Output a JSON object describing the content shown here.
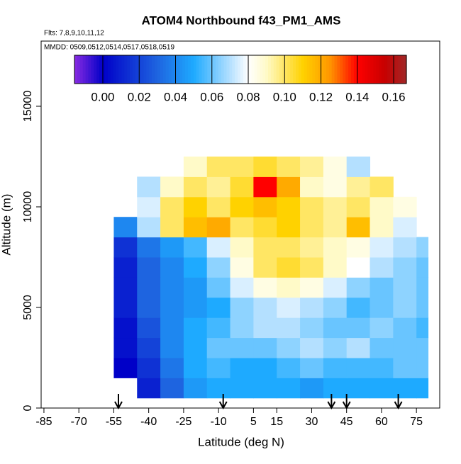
{
  "chart_data": {
    "type": "heatmap",
    "title": "ATOM4 Northbound f43_PM1_AMS",
    "annotations": [
      "Flts: 7,8,9,10,11,12",
      "MMDD: 0509,0512,0514,0517,0518,0519"
    ],
    "x_label": "Latitude (deg N)",
    "y_label": "Altitude (m)",
    "xlim": [
      -86.2,
      85
    ],
    "ylim": [
      0,
      18240
    ],
    "xticks": [
      -85,
      -70,
      -55,
      -40,
      -25,
      -10,
      5,
      15,
      30,
      45,
      60,
      75
    ],
    "yticks": [
      0,
      5000,
      10000,
      15000
    ],
    "x_edges": [
      -55,
      -45,
      -35,
      -25,
      -15,
      -5,
      5,
      15,
      25,
      35,
      45,
      55,
      65,
      75,
      80
    ],
    "y_edges": [
      500,
      1500,
      2500,
      3500,
      4500,
      5500,
      6500,
      7500,
      8500,
      9500,
      10500,
      11500,
      12500
    ],
    "values": [
      [
        null,
        0.01,
        0.03,
        0.045,
        0.05,
        0.05,
        0.05,
        0.05,
        0.045,
        0.05,
        0.05,
        0.05,
        0.05,
        0.05
      ],
      [
        0.0,
        0.015,
        0.035,
        0.05,
        0.055,
        0.05,
        0.05,
        0.055,
        0.06,
        0.055,
        0.055,
        0.055,
        0.06,
        0.06
      ],
      [
        0.005,
        0.02,
        0.04,
        0.05,
        0.06,
        0.06,
        0.06,
        0.065,
        0.07,
        0.065,
        0.07,
        0.06,
        0.06,
        0.06
      ],
      [
        0.005,
        0.025,
        0.04,
        0.05,
        0.055,
        0.065,
        0.07,
        0.07,
        0.065,
        0.06,
        0.06,
        0.065,
        0.06,
        0.055
      ],
      [
        0.01,
        0.03,
        0.04,
        0.045,
        0.05,
        0.065,
        0.07,
        0.075,
        0.07,
        0.065,
        0.055,
        0.06,
        0.065,
        0.06
      ],
      [
        0.01,
        0.03,
        0.04,
        0.045,
        0.06,
        0.075,
        0.085,
        0.09,
        0.085,
        0.075,
        0.065,
        0.06,
        0.065,
        0.06
      ],
      [
        0.01,
        0.03,
        0.04,
        0.05,
        0.065,
        0.085,
        0.1,
        0.105,
        0.1,
        0.09,
        0.08,
        0.07,
        0.065,
        0.06
      ],
      [
        0.015,
        0.035,
        0.045,
        0.055,
        0.075,
        0.09,
        0.1,
        0.1,
        0.095,
        0.09,
        0.085,
        0.075,
        0.07,
        0.065
      ],
      [
        0.04,
        0.07,
        0.1,
        0.115,
        0.12,
        0.1,
        0.105,
        0.11,
        0.1,
        0.095,
        0.115,
        0.09,
        0.075,
        null
      ],
      [
        null,
        0.075,
        0.1,
        0.11,
        0.1,
        0.11,
        0.115,
        0.11,
        0.1,
        0.095,
        0.1,
        0.09,
        0.085,
        null
      ],
      [
        null,
        0.07,
        0.09,
        0.1,
        0.095,
        0.105,
        0.14,
        0.12,
        0.09,
        0.085,
        0.095,
        0.1,
        null,
        null
      ],
      [
        null,
        null,
        null,
        0.09,
        0.1,
        0.1,
        0.105,
        0.1,
        0.095,
        0.085,
        0.07,
        null,
        null,
        null
      ]
    ],
    "clim": [
      -0.0156,
      0.167
    ],
    "cticks": [
      {
        "value": 0,
        "label": "0.00"
      },
      {
        "value": 0.02,
        "label": "0.02"
      },
      {
        "value": 0.04,
        "label": "0.04"
      },
      {
        "value": 0.06,
        "label": "0.06"
      },
      {
        "value": 0.08,
        "label": "0.08"
      },
      {
        "value": 0.1,
        "label": "0.10"
      },
      {
        "value": 0.12,
        "label": "0.12"
      },
      {
        "value": 0.14,
        "label": "0.14"
      },
      {
        "value": 0.16,
        "label": "0.16"
      }
    ],
    "colorscale": [
      [
        -0.0156,
        "#8a2be2"
      ],
      [
        0,
        "#0000c8"
      ],
      [
        0.03,
        "#1e64e0"
      ],
      [
        0.05,
        "#1eaaff"
      ],
      [
        0.07,
        "#b4e0ff"
      ],
      [
        0.08,
        "#ffffff"
      ],
      [
        0.09,
        "#fffac8"
      ],
      [
        0.11,
        "#ffd200"
      ],
      [
        0.125,
        "#ff9600"
      ],
      [
        0.14,
        "#ff0000"
      ],
      [
        0.155,
        "#c80000"
      ],
      [
        0.167,
        "#a02828"
      ]
    ],
    "markers_x": [
      -53,
      -8,
      38.5,
      45,
      67.2
    ]
  }
}
